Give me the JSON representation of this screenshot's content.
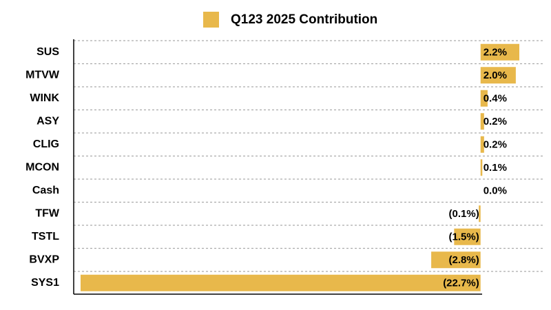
{
  "chart_data": {
    "type": "bar",
    "orientation": "horizontal",
    "categories": [
      "SUS",
      "MTVW",
      "WINK",
      "ASY",
      "CLIG",
      "MCON",
      "Cash",
      "TFW",
      "TSTL",
      "BVXP",
      "SYS1"
    ],
    "series": [
      {
        "name": "Q123 2025 Contribution",
        "color": "#e8b84b",
        "values": [
          2.2,
          2.0,
          0.4,
          0.2,
          0.2,
          0.1,
          0.0,
          -0.1,
          -1.5,
          -2.8,
          -22.7
        ],
        "value_labels": [
          "2.2%",
          "2.0%",
          "0.4%",
          "0.2%",
          "0.2%",
          "0.1%",
          "0.0%",
          "(0.1%)",
          "(1.5%)",
          "(2.8%)",
          "(22.7%)"
        ]
      }
    ],
    "legend": "top"
  }
}
